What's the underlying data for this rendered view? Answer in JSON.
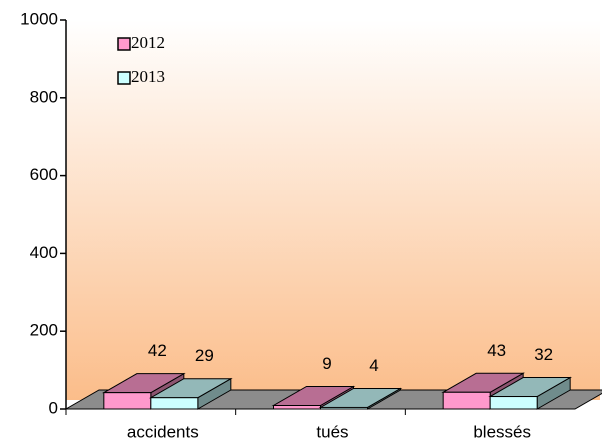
{
  "chart_data": {
    "type": "bar3d",
    "categories": [
      "accidents",
      "tués",
      "blessés"
    ],
    "series": [
      {
        "name": "2012",
        "color": "#ff99cc",
        "values": [
          42,
          9,
          43
        ]
      },
      {
        "name": "2013",
        "color": "#ccffff",
        "values": [
          29,
          4,
          32
        ]
      }
    ],
    "ylim": [
      0,
      1000
    ],
    "yticks": [
      0,
      200,
      400,
      600,
      800,
      1000
    ],
    "legend": "upper left"
  }
}
